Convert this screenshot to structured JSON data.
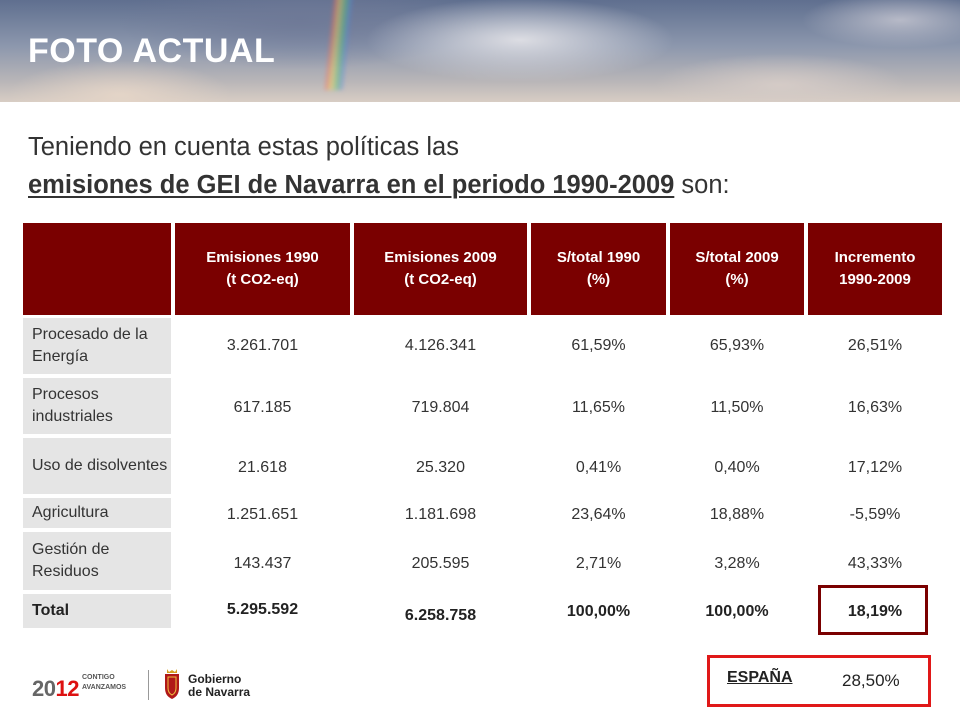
{
  "header": {
    "title": "FOTO ACTUAL"
  },
  "intro": {
    "line1": "Teniendo en cuenta estas políticas las",
    "line2_emphasis": "emisiones de GEI de Navarra en el periodo 1990-2009",
    "line2_suffix": " son:"
  },
  "table": {
    "headers": [
      "Emisiones 1990\n(t CO2-eq)",
      "Emisiones 2009\n(t CO2-eq)",
      "S/total 1990\n(%)",
      "S/total 2009\n(%)",
      "Incremento\n1990-2009"
    ],
    "rows": [
      {
        "label": "Procesado de la Energía",
        "values": [
          "3.261.701",
          "4.126.341",
          "61,59%",
          "65,93%",
          "26,51%"
        ]
      },
      {
        "label": "Procesos industriales",
        "values": [
          "617.185",
          "719.804",
          "11,65%",
          "11,50%",
          "16,63%"
        ]
      },
      {
        "label": "Uso de disolventes",
        "values": [
          "21.618",
          "25.320",
          "0,41%",
          "0,40%",
          "17,12%"
        ]
      },
      {
        "label": "Agricultura",
        "values": [
          "1.251.651",
          "1.181.698",
          "23,64%",
          "18,88%",
          "-5,59%"
        ]
      },
      {
        "label": "Gestión de Residuos",
        "values": [
          "143.437",
          "205.595",
          "2,71%",
          "3,28%",
          "43,33%"
        ]
      },
      {
        "label": "Total",
        "values": [
          "5.295.592",
          "6.258.758",
          "100,00%",
          "100,00%",
          "18,19%"
        ]
      }
    ]
  },
  "spain": {
    "label": "ESPAÑA",
    "value": "28,50%"
  },
  "footer": {
    "year_prefix": "20",
    "year_suffix": "12",
    "slogan_line1": "CONTIGO",
    "slogan_line2": "AVANZAMOS",
    "gov_line1": "Gobierno",
    "gov_line2": "de Navarra"
  },
  "colors": {
    "header_bg": "#7a0000",
    "row_label_bg": "#e5e5e5",
    "spain_border": "#e01818"
  }
}
